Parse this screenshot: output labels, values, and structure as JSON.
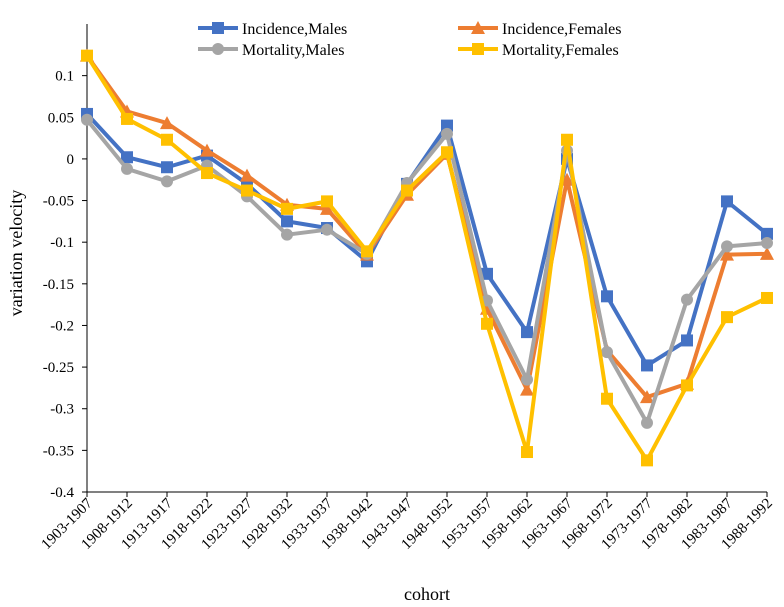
{
  "chart_data": {
    "type": "line",
    "title": "",
    "xlabel": "cohort",
    "ylabel": "variation velocity",
    "ylim": [
      -0.4,
      0.15
    ],
    "yticks": [
      "0.1",
      "0.05",
      "0",
      "-0.05",
      "-0.1",
      "-0.15",
      "-0.2",
      "-0.25",
      "-0.3",
      "-0.35",
      "-0.4"
    ],
    "ytick_values": [
      0.1,
      0.05,
      0,
      -0.05,
      -0.1,
      -0.15,
      -0.2,
      -0.25,
      -0.3,
      -0.35,
      -0.4
    ],
    "categories": [
      "1903-1907",
      "1908-1912",
      "1913-1917",
      "1918-1922",
      "1923-1927",
      "1928-1932",
      "1933-1937",
      "1938-1942",
      "1943-1947",
      "1948-1952",
      "1953-1957",
      "1958-1962",
      "1963-1967",
      "1968-1972",
      "1973-1977",
      "1978-1982",
      "1983-1987",
      "1988-1992"
    ],
    "legend_position": "top",
    "series": [
      {
        "name": "Incidence,Males",
        "color": "#4472C4",
        "marker": "square",
        "values": [
          0.054,
          0.002,
          -0.01,
          0.004,
          -0.03,
          -0.075,
          -0.083,
          -0.123,
          -0.03,
          0.04,
          -0.138,
          -0.208,
          0.0,
          -0.165,
          -0.248,
          -0.218,
          -0.051,
          -0.09
        ]
      },
      {
        "name": "Incidence,Females",
        "color": "#ED7D31",
        "marker": "triangle",
        "values": [
          0.124,
          0.057,
          0.043,
          0.01,
          -0.02,
          -0.055,
          -0.06,
          -0.115,
          -0.043,
          0.006,
          -0.18,
          -0.277,
          -0.025,
          -0.23,
          -0.286,
          -0.27,
          -0.115,
          -0.114
        ]
      },
      {
        "name": "Mortality,Males",
        "color": "#A5A5A5",
        "marker": "circle",
        "values": [
          0.047,
          -0.012,
          -0.027,
          -0.008,
          -0.045,
          -0.091,
          -0.085,
          -0.114,
          -0.029,
          0.03,
          -0.17,
          -0.265,
          0.01,
          -0.232,
          -0.317,
          -0.169,
          -0.105,
          -0.101
        ]
      },
      {
        "name": "Mortality,Females",
        "color": "#FFC000",
        "marker": "square",
        "values": [
          0.124,
          0.048,
          0.023,
          -0.017,
          -0.038,
          -0.06,
          -0.051,
          -0.111,
          -0.038,
          0.008,
          -0.198,
          -0.352,
          0.023,
          -0.288,
          -0.362,
          -0.272,
          -0.19,
          -0.167
        ]
      }
    ]
  }
}
